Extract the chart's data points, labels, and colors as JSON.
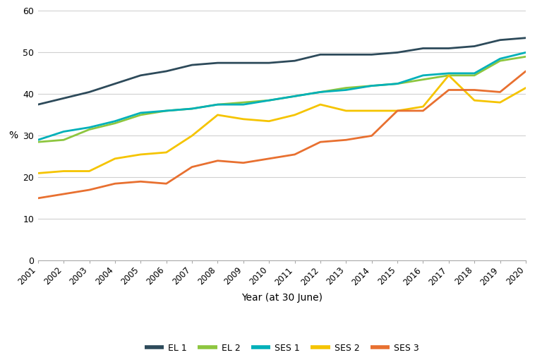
{
  "years": [
    2001,
    2002,
    2003,
    2004,
    2005,
    2006,
    2007,
    2008,
    2009,
    2010,
    2011,
    2012,
    2013,
    2014,
    2015,
    2016,
    2017,
    2018,
    2019,
    2020
  ],
  "EL1": [
    37.5,
    39.0,
    40.5,
    42.5,
    44.5,
    45.5,
    47.0,
    47.5,
    47.5,
    47.5,
    48.0,
    49.5,
    49.5,
    49.5,
    50.0,
    51.0,
    51.0,
    51.5,
    53.0,
    53.5
  ],
  "EL2": [
    28.5,
    29.0,
    31.5,
    33.0,
    35.0,
    36.0,
    36.5,
    37.5,
    38.0,
    38.5,
    39.5,
    40.5,
    41.5,
    42.0,
    42.5,
    43.5,
    44.5,
    44.5,
    48.0,
    49.0
  ],
  "SES1": [
    29.0,
    31.0,
    32.0,
    33.5,
    35.5,
    36.0,
    36.5,
    37.5,
    37.5,
    38.5,
    39.5,
    40.5,
    41.0,
    42.0,
    42.5,
    44.5,
    45.0,
    45.0,
    48.5,
    50.0
  ],
  "SES2": [
    21.0,
    21.5,
    21.5,
    24.5,
    25.5,
    26.0,
    30.0,
    35.0,
    34.0,
    33.5,
    35.0,
    37.5,
    36.0,
    36.0,
    36.0,
    37.0,
    44.5,
    38.5,
    38.0,
    41.5
  ],
  "SES3": [
    15.0,
    16.0,
    17.0,
    18.5,
    19.0,
    18.5,
    22.5,
    24.0,
    23.5,
    24.5,
    25.5,
    28.5,
    29.0,
    30.0,
    36.0,
    36.0,
    41.0,
    41.0,
    40.5,
    45.5
  ],
  "colors": {
    "EL1": "#2d4a5a",
    "EL2": "#8dc63f",
    "SES1": "#00b0b9",
    "SES2": "#f5c400",
    "SES3": "#e87030"
  },
  "xlabel": "Year (at 30 June)",
  "ylabel": "%",
  "ylim": [
    0,
    60
  ],
  "yticks": [
    0,
    10,
    20,
    30,
    40,
    50,
    60
  ],
  "legend_labels": [
    "EL 1",
    "EL 2",
    "SES 1",
    "SES 2",
    "SES 3"
  ],
  "background_color": "#ffffff",
  "grid_color": "#d0d0d0"
}
